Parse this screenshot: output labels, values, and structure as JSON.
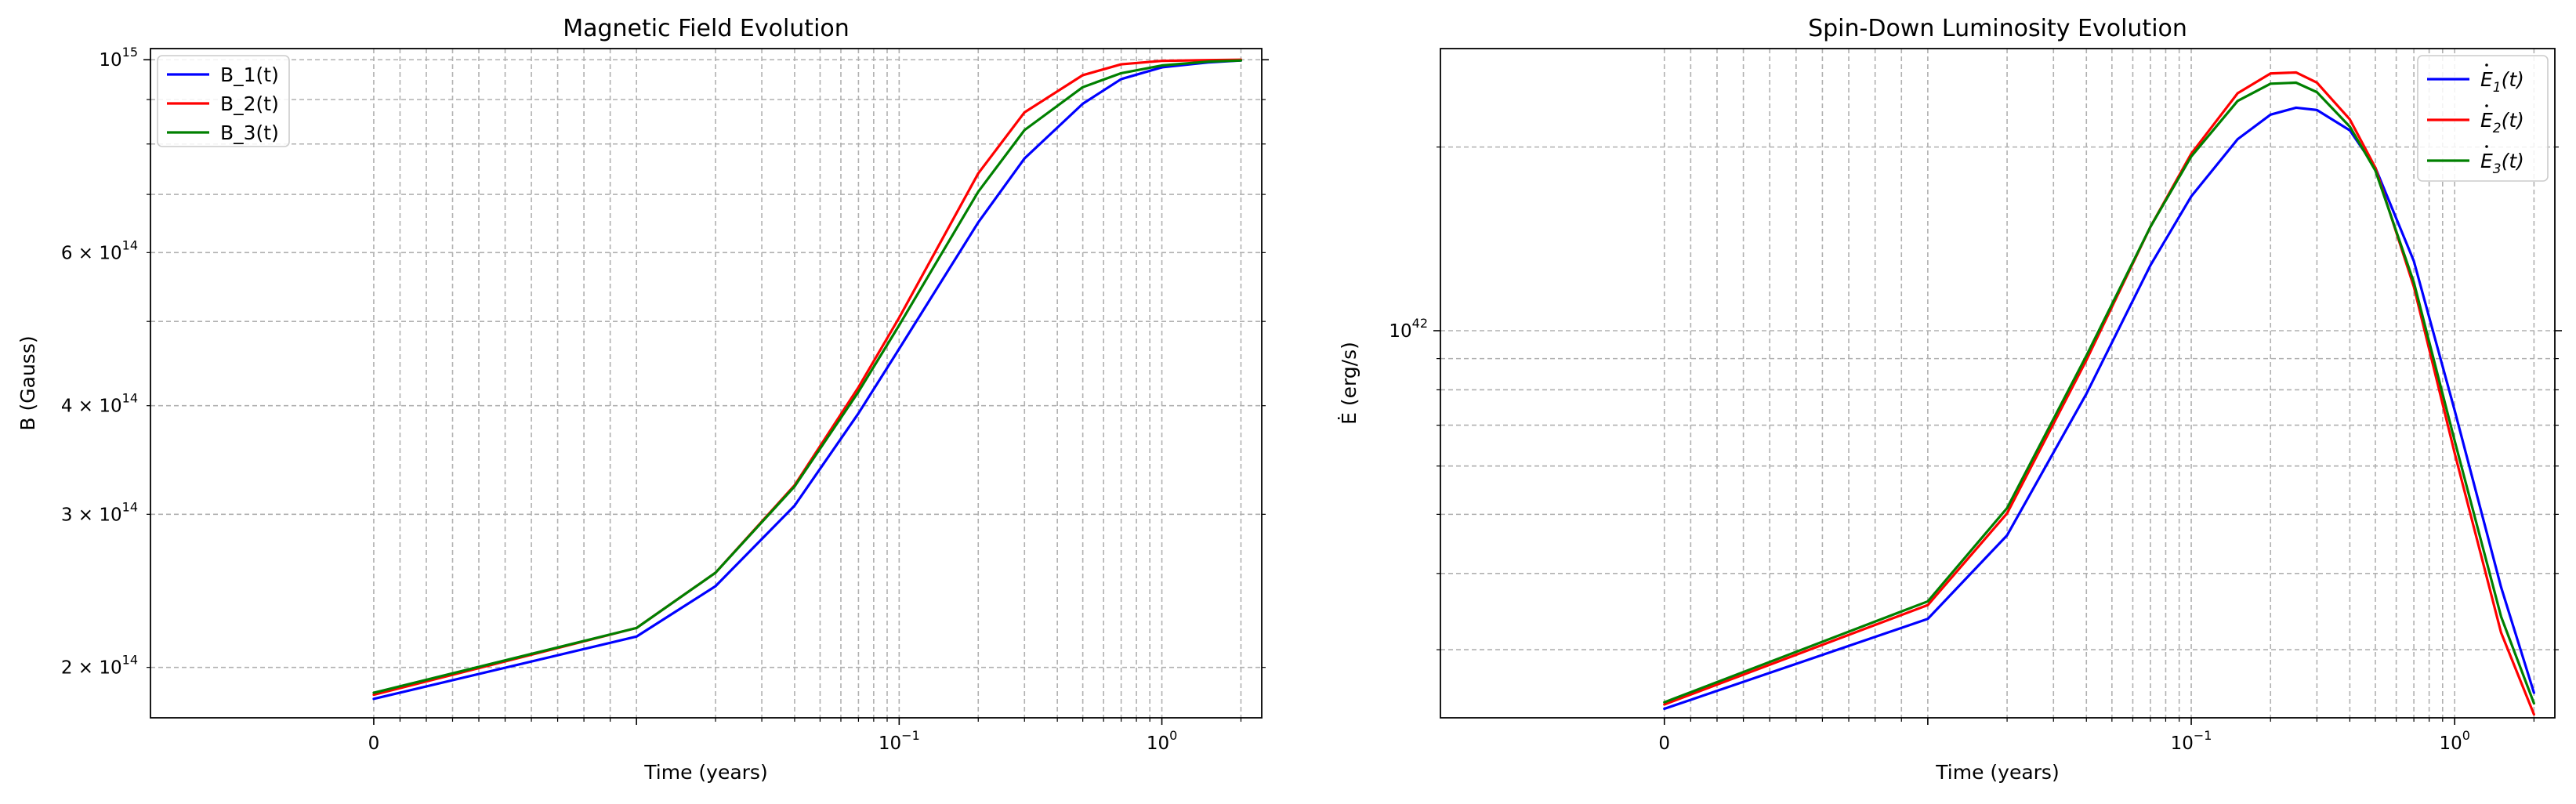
{
  "chart_data": [
    {
      "type": "line",
      "title": "Magnetic Field Evolution",
      "xlabel": "Time (years)",
      "ylabel": "B (Gauss)",
      "xscale": "symlog",
      "yscale": "log",
      "xlim": [
        -0.0085,
        2.4
      ],
      "ylim": [
        175000000000000.0,
        1030000000000000.0
      ],
      "xticks": [
        {
          "value": 0,
          "label": "0"
        },
        {
          "value": 0.1,
          "label": "10",
          "exp": "−1"
        },
        {
          "value": 1,
          "label": "10",
          "exp": "0"
        }
      ],
      "yticks": [
        {
          "value": 200000000000000.0,
          "label": "2 × 10",
          "exp": "14"
        },
        {
          "value": 300000000000000.0,
          "label": "3 × 10",
          "exp": "14"
        },
        {
          "value": 400000000000000.0,
          "label": "4 × 10",
          "exp": "14"
        },
        {
          "value": 600000000000000.0,
          "label": "6 × 10",
          "exp": "14"
        },
        {
          "value": 1000000000000000.0,
          "label": "10",
          "exp": "15"
        }
      ],
      "grid": true,
      "legend_position": "upper-left",
      "series": [
        {
          "name": "B_1(t)",
          "color": "#0000ff",
          "x": [
            0,
            0.01,
            0.02,
            0.04,
            0.07,
            0.1,
            0.2,
            0.3,
            0.5,
            0.7,
            1.0,
            1.5,
            2.0
          ],
          "y": [
            184000000000000.0,
            217000000000000.0,
            248000000000000.0,
            307000000000000.0,
            392000000000000.0,
            465000000000000.0,
            650000000000000.0,
            770000000000000.0,
            890000000000000.0,
            950000000000000.0,
            980000000000000.0,
            993000000000000.0,
            998000000000000.0
          ]
        },
        {
          "name": "B_2(t)",
          "color": "#ff0000",
          "x": [
            0,
            0.01,
            0.02,
            0.04,
            0.07,
            0.1,
            0.2,
            0.3,
            0.5,
            0.7,
            1.0,
            1.5,
            2.0
          ],
          "y": [
            186000000000000.0,
            222000000000000.0,
            257000000000000.0,
            324000000000000.0,
            420000000000000.0,
            505000000000000.0,
            740000000000000.0,
            870000000000000.0,
            960000000000000.0,
            988000000000000.0,
            997000000000000.0,
            999000000000000.0,
            1000000000000000.0
          ]
        },
        {
          "name": "B_3(t)",
          "color": "#008000",
          "x": [
            0,
            0.01,
            0.02,
            0.04,
            0.07,
            0.1,
            0.2,
            0.3,
            0.5,
            0.7,
            1.0,
            1.5,
            2.0
          ],
          "y": [
            187000000000000.0,
            222000000000000.0,
            257000000000000.0,
            323000000000000.0,
            415000000000000.0,
            495000000000000.0,
            705000000000000.0,
            830000000000000.0,
            930000000000000.0,
            965000000000000.0,
            985000000000000.0,
            995000000000000.0,
            998000000000000.0
          ]
        }
      ]
    },
    {
      "type": "line",
      "title": "Spin-Down Luminosity Evolution",
      "xlabel": "Time (years)",
      "ylabel": "Ė (erg/s)",
      "xscale": "symlog",
      "yscale": "log",
      "xlim": [
        -0.0085,
        2.4
      ],
      "ylim": [
        2.32e+41,
        2.9e+42
      ],
      "xticks": [
        {
          "value": 0,
          "label": "0"
        },
        {
          "value": 0.1,
          "label": "10",
          "exp": "−1"
        },
        {
          "value": 1,
          "label": "10",
          "exp": "0"
        }
      ],
      "yticks": [
        {
          "value": 1e+42,
          "label": "10",
          "exp": "42"
        }
      ],
      "grid": true,
      "legend_position": "upper-right",
      "series": [
        {
          "name": "Ė_1(t)",
          "base": "E",
          "sub": "1",
          "color": "#0000ff",
          "x": [
            0,
            0.01,
            0.02,
            0.04,
            0.07,
            0.1,
            0.15,
            0.2,
            0.25,
            0.3,
            0.4,
            0.5,
            0.7,
            1.0,
            1.5,
            2.0
          ],
          "y": [
            2.4e+41,
            3.37e+41,
            4.62e+41,
            7.88e+41,
            1.28e+42,
            1.66e+42,
            2.06e+42,
            2.26e+42,
            2.32e+42,
            2.3e+42,
            2.13e+42,
            1.85e+42,
            1.3e+42,
            7.4e+41,
            3.8e+41,
            2.55e+41
          ]
        },
        {
          "name": "Ė_2(t)",
          "base": "E",
          "sub": "2",
          "color": "#ff0000",
          "x": [
            0,
            0.01,
            0.02,
            0.04,
            0.07,
            0.1,
            0.15,
            0.2,
            0.25,
            0.3,
            0.4,
            0.5,
            0.7,
            1.0,
            1.5,
            2.0
          ],
          "y": [
            2.44e+41,
            3.55e+41,
            5.02e+41,
            8.95e+41,
            1.48e+42,
            1.95e+42,
            2.45e+42,
            2.64e+42,
            2.65e+42,
            2.55e+42,
            2.22e+42,
            1.85e+42,
            1.18e+42,
            6.3e+41,
            3.2e+41,
            2.35e+41
          ]
        },
        {
          "name": "Ė_3(t)",
          "base": "E",
          "sub": "3",
          "color": "#008000",
          "x": [
            0,
            0.01,
            0.02,
            0.04,
            0.07,
            0.1,
            0.15,
            0.2,
            0.25,
            0.3,
            0.4,
            0.5,
            0.7,
            1.0,
            1.5,
            2.0
          ],
          "y": [
            2.46e+41,
            3.6e+41,
            5.12e+41,
            9.1e+41,
            1.48e+42,
            1.93e+42,
            2.38e+42,
            2.54e+42,
            2.55e+42,
            2.46e+42,
            2.16e+42,
            1.83e+42,
            1.2e+42,
            6.6e+41,
            3.4e+41,
            2.45e+41
          ]
        }
      ]
    }
  ]
}
